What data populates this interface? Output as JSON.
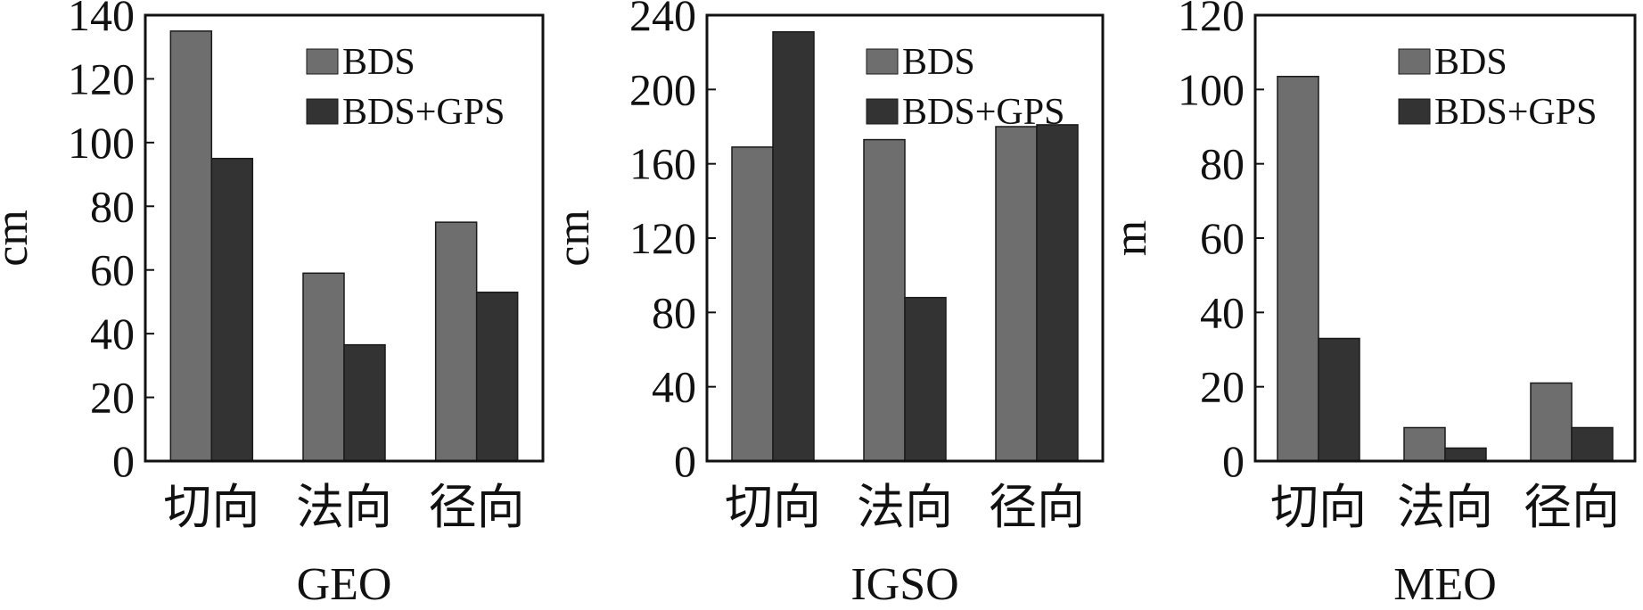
{
  "chart_data": [
    {
      "type": "bar",
      "xlabel": "GEO",
      "ylabel": "cm",
      "categories": [
        "切向",
        "法向",
        "径向"
      ],
      "ylim": [
        0,
        140
      ],
      "yticks": [
        0,
        20,
        40,
        60,
        80,
        100,
        120,
        140
      ],
      "legend": "top-right",
      "series": [
        {
          "name": "BDS",
          "color": "#6e6e6e",
          "values": [
            135,
            59,
            75
          ]
        },
        {
          "name": "BDS+GPS",
          "color": "#333333",
          "values": [
            95,
            36.5,
            53
          ]
        }
      ]
    },
    {
      "type": "bar",
      "xlabel": "IGSO",
      "ylabel": "cm",
      "categories": [
        "切向",
        "法向",
        "径向"
      ],
      "ylim": [
        0,
        240
      ],
      "yticks": [
        0,
        40,
        80,
        120,
        160,
        200,
        240
      ],
      "legend": "top-right",
      "series": [
        {
          "name": "BDS",
          "color": "#6e6e6e",
          "values": [
            169,
            173,
            180
          ]
        },
        {
          "name": "BDS+GPS",
          "color": "#333333",
          "values": [
            231,
            88,
            181
          ]
        }
      ]
    },
    {
      "type": "bar",
      "xlabel": "MEO",
      "ylabel": "m",
      "categories": [
        "切向",
        "法向",
        "径向"
      ],
      "ylim": [
        0,
        120
      ],
      "yticks": [
        0,
        20,
        40,
        60,
        80,
        100,
        120
      ],
      "legend": "top-right",
      "series": [
        {
          "name": "BDS",
          "color": "#6e6e6e",
          "values": [
            103.5,
            9,
            21
          ]
        },
        {
          "name": "BDS+GPS",
          "color": "#333333",
          "values": [
            33,
            3.5,
            9
          ]
        }
      ]
    }
  ]
}
